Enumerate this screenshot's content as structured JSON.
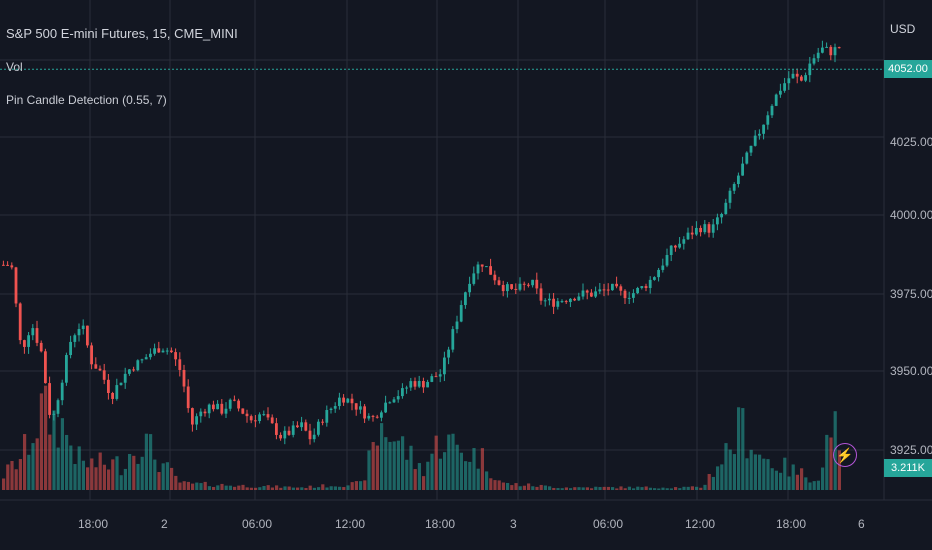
{
  "header": {
    "title": "S&P 500 E-mini Futures, 15, CME_MINI",
    "indicators": [
      "Vol",
      "Pin Candle Detection (0.55, 7)"
    ]
  },
  "price_axis": {
    "currency": "USD",
    "ticks": [
      "4025.00",
      "4000.00",
      "3975.00",
      "3950.00",
      "3925.00"
    ],
    "last_price": "4052.00",
    "volume_badge": "3.211K"
  },
  "time_axis": {
    "ticks": [
      "18:00",
      "2",
      "06:00",
      "12:00",
      "18:00",
      "3",
      "06:00",
      "12:00",
      "18:00",
      "6"
    ]
  },
  "colors": {
    "background": "#131722",
    "up": "#26a69a",
    "down": "#ef5350",
    "grid": "#2a2e39",
    "accent": "#b455d8"
  },
  "chart_data": {
    "type": "candlestick",
    "symbol": "S&P 500 E-mini Futures",
    "interval": "15",
    "y_range": [
      3913,
      4062
    ],
    "price_path": [
      [
        0,
        3985
      ],
      [
        10,
        3985
      ],
      [
        20,
        3955
      ],
      [
        30,
        3965
      ],
      [
        40,
        3955
      ],
      [
        50,
        3930
      ],
      [
        60,
        3945
      ],
      [
        70,
        3960
      ],
      [
        80,
        3965
      ],
      [
        90,
        3952
      ],
      [
        100,
        3948
      ],
      [
        110,
        3940
      ],
      [
        120,
        3946
      ],
      [
        130,
        3950
      ],
      [
        140,
        3952
      ],
      [
        150,
        3955
      ],
      [
        160,
        3957
      ],
      [
        170,
        3955
      ],
      [
        180,
        3948
      ],
      [
        190,
        3930
      ],
      [
        200,
        3935
      ],
      [
        210,
        3937
      ],
      [
        220,
        3935
      ],
      [
        230,
        3938
      ],
      [
        240,
        3935
      ],
      [
        250,
        3932
      ],
      [
        260,
        3934
      ],
      [
        270,
        3930
      ],
      [
        280,
        3926
      ],
      [
        290,
        3928
      ],
      [
        300,
        3930
      ],
      [
        310,
        3925
      ],
      [
        320,
        3932
      ],
      [
        330,
        3936
      ],
      [
        340,
        3940
      ],
      [
        350,
        3938
      ],
      [
        360,
        3935
      ],
      [
        370,
        3932
      ],
      [
        380,
        3936
      ],
      [
        390,
        3940
      ],
      [
        400,
        3941
      ],
      [
        410,
        3945
      ],
      [
        420,
        3944
      ],
      [
        430,
        3946
      ],
      [
        440,
        3948
      ],
      [
        450,
        3960
      ],
      [
        460,
        3972
      ],
      [
        470,
        3982
      ],
      [
        480,
        3986
      ],
      [
        490,
        3982
      ],
      [
        500,
        3978
      ],
      [
        510,
        3976
      ],
      [
        520,
        3977
      ],
      [
        530,
        3979
      ],
      [
        540,
        3973
      ],
      [
        550,
        3972
      ],
      [
        560,
        3973
      ],
      [
        570,
        3974
      ],
      [
        580,
        3975
      ],
      [
        590,
        3975
      ],
      [
        600,
        3976
      ],
      [
        610,
        3977
      ],
      [
        620,
        3975
      ],
      [
        630,
        3975
      ],
      [
        640,
        3977
      ],
      [
        650,
        3980
      ],
      [
        660,
        3985
      ],
      [
        670,
        3990
      ],
      [
        680,
        3993
      ],
      [
        690,
        3996
      ],
      [
        700,
        3998
      ],
      [
        710,
        3997
      ],
      [
        720,
        4002
      ],
      [
        730,
        4010
      ],
      [
        740,
        4018
      ],
      [
        750,
        4025
      ],
      [
        760,
        4032
      ],
      [
        770,
        4040
      ],
      [
        780,
        4046
      ],
      [
        790,
        4050
      ],
      [
        800,
        4048
      ],
      [
        810,
        4055
      ],
      [
        820,
        4059
      ],
      [
        830,
        4058
      ],
      [
        840,
        4060
      ]
    ],
    "volume_path": [
      [
        0,
        0.1
      ],
      [
        20,
        0.25
      ],
      [
        40,
        0.6
      ],
      [
        60,
        0.5
      ],
      [
        80,
        0.2
      ],
      [
        120,
        0.2
      ],
      [
        140,
        0.4
      ],
      [
        160,
        0.2
      ],
      [
        180,
        0.05
      ],
      [
        250,
        0.03
      ],
      [
        300,
        0.02
      ],
      [
        360,
        0.05
      ],
      [
        380,
        0.5
      ],
      [
        400,
        0.35
      ],
      [
        420,
        0.15
      ],
      [
        440,
        0.4
      ],
      [
        460,
        0.3
      ],
      [
        480,
        0.25
      ],
      [
        500,
        0.05
      ],
      [
        560,
        0.02
      ],
      [
        700,
        0.02
      ],
      [
        730,
        0.35
      ],
      [
        740,
        0.5
      ],
      [
        760,
        0.25
      ],
      [
        790,
        0.15
      ],
      [
        810,
        0.1
      ],
      [
        820,
        0.1
      ],
      [
        830,
        0.65
      ],
      [
        840,
        0.1
      ]
    ]
  }
}
